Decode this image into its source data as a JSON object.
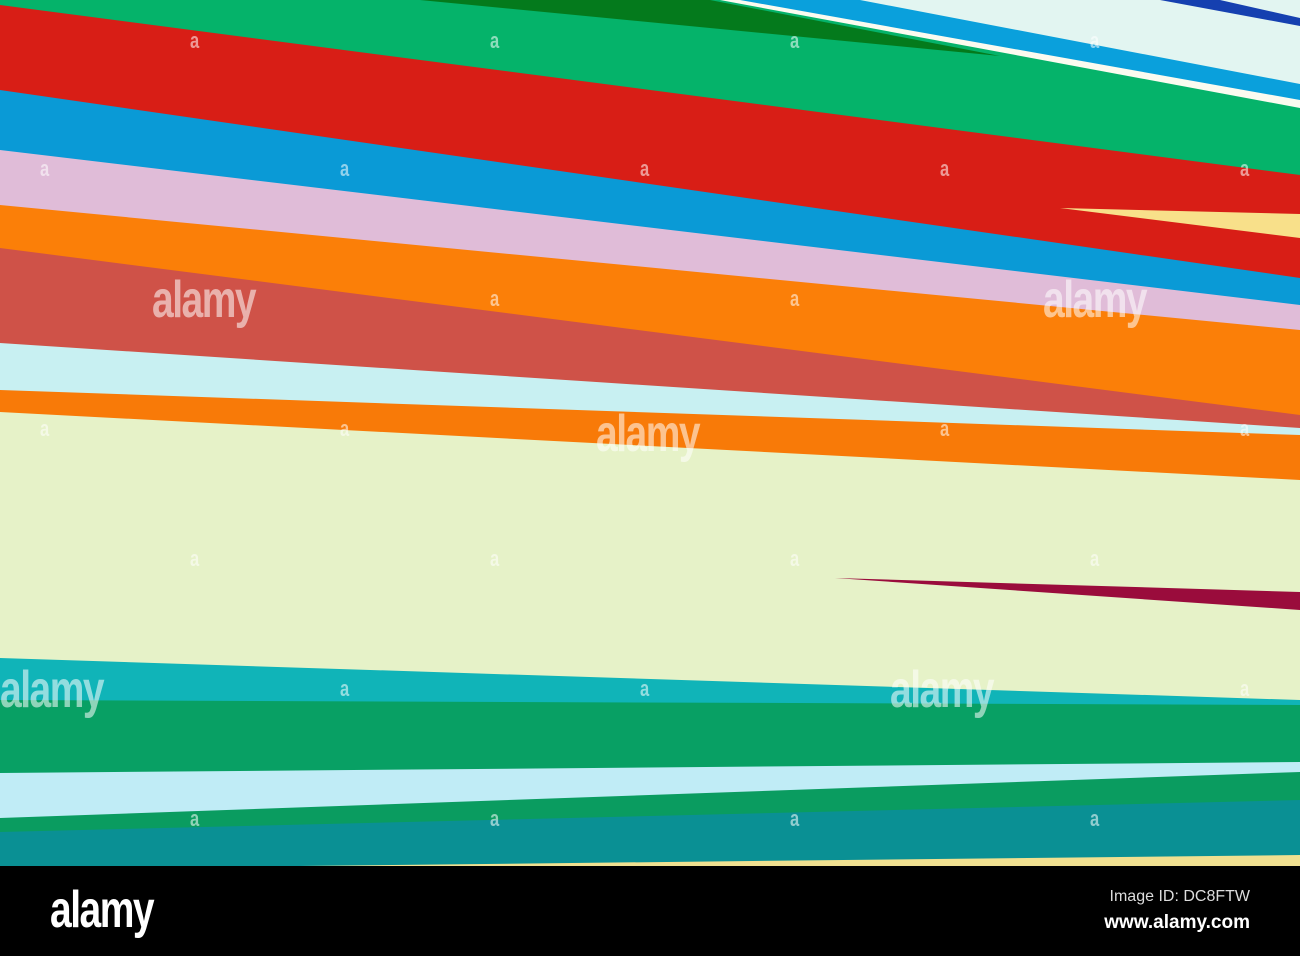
{
  "photo": {
    "subject": "",
    "colors": {
      "background_light": "#e2f5f1",
      "top_blue": "#0aa0dc",
      "white_line": "#fbfbf0",
      "top_green": "#05b36a",
      "dark_green": "#047a1c",
      "navy_line": "#1540b0",
      "red": "#d81e16",
      "yellow_wedge": "#f8e08a",
      "blue": "#0a9ad6",
      "pink": "#e0bcd8",
      "orange": "#fb7f08",
      "brick": "#cf5248",
      "light_cyan": "#c8f0f2",
      "orange2": "#f87a08",
      "cream": "#e6f2c8",
      "maroon": "#9a0c3c",
      "teal": "#10b4b8",
      "green": "#08a064",
      "light_cyan2": "#c0ecf6",
      "green2": "#0a9c60",
      "dark_teal": "#0a9094",
      "yellow_bottom": "#f0e090"
    }
  },
  "watermark": {
    "word": "alamy",
    "letter": "a"
  },
  "footer": {
    "logo": "alamy",
    "image_id": "Image ID: DC8FTW",
    "site": "www.alamy.com"
  }
}
